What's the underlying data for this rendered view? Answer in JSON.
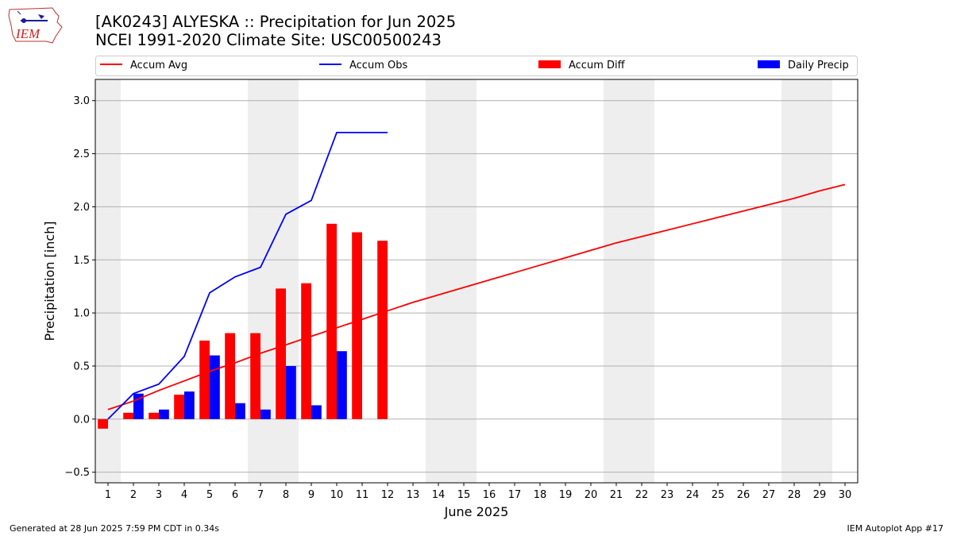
{
  "title_line1": "[AK0243] ALYESKA :: Precipitation for Jun 2025",
  "title_line2": "NCEI 1991-2020 Climate Site: USC00500243",
  "logo_text": "IEM",
  "footer_left": "Generated at 28 Jun 2025 7:59 PM CDT in 0.34s",
  "footer_right": "IEM Autoplot App #17",
  "colors": {
    "accum_avg": "#ff0000",
    "accum_obs": "#0000ff",
    "accum_diff": "#ff0000",
    "daily_precip": "#0000ff",
    "weekend_shade": "#eeeeee",
    "grid": "#b0b0b0"
  },
  "chart_data": {
    "type": "bar",
    "title": "[AK0243] ALYESKA :: Precipitation for Jun 2025",
    "subtitle": "NCEI 1991-2020 Climate Site: USC00500243",
    "xlabel": "June 2025",
    "ylabel": "Precipitation [inch]",
    "xlim": [
      0.5,
      30.5
    ],
    "ylim": [
      -0.6,
      3.2
    ],
    "yticks": [
      -0.5,
      0.0,
      0.5,
      1.0,
      1.5,
      2.0,
      2.5,
      3.0
    ],
    "ytick_labels": [
      "−0.5",
      "0.0",
      "0.5",
      "1.0",
      "1.5",
      "2.0",
      "2.5",
      "3.0"
    ],
    "x_categories": [
      1,
      2,
      3,
      4,
      5,
      6,
      7,
      8,
      9,
      10,
      11,
      12,
      13,
      14,
      15,
      16,
      17,
      18,
      19,
      20,
      21,
      22,
      23,
      24,
      25,
      26,
      27,
      28,
      29,
      30
    ],
    "grid": "horizontal",
    "legend_placement": "top",
    "weekend_shading_days": [
      [
        1,
        1
      ],
      [
        7,
        8
      ],
      [
        14,
        15
      ],
      [
        21,
        22
      ],
      [
        28,
        29
      ]
    ],
    "series": [
      {
        "name": "Accum Avg",
        "kind": "line",
        "x": [
          1,
          2,
          3,
          4,
          5,
          6,
          7,
          8,
          9,
          10,
          11,
          12,
          13,
          14,
          15,
          16,
          17,
          18,
          19,
          20,
          21,
          22,
          23,
          24,
          25,
          26,
          27,
          28,
          29,
          30
        ],
        "values": [
          0.09,
          0.17,
          0.27,
          0.36,
          0.45,
          0.53,
          0.62,
          0.7,
          0.78,
          0.86,
          0.94,
          1.02,
          1.1,
          1.17,
          1.24,
          1.31,
          1.38,
          1.45,
          1.52,
          1.59,
          1.66,
          1.72,
          1.78,
          1.84,
          1.9,
          1.96,
          2.02,
          2.08,
          2.15,
          2.21
        ]
      },
      {
        "name": "Accum Obs",
        "kind": "line",
        "x": [
          1,
          2,
          3,
          4,
          5,
          6,
          7,
          8,
          9,
          10,
          11,
          12
        ],
        "values": [
          0.0,
          0.24,
          0.33,
          0.59,
          1.19,
          1.34,
          1.43,
          1.93,
          2.06,
          2.7,
          2.7,
          2.7
        ]
      },
      {
        "name": "Accum Diff",
        "kind": "bar",
        "x": [
          1,
          2,
          3,
          4,
          5,
          6,
          7,
          8,
          9,
          10,
          11,
          12
        ],
        "values": [
          -0.09,
          0.06,
          0.06,
          0.23,
          0.74,
          0.81,
          0.81,
          1.23,
          1.28,
          1.84,
          1.76,
          1.68
        ]
      },
      {
        "name": "Daily Precip",
        "kind": "bar",
        "x": [
          1,
          2,
          3,
          4,
          5,
          6,
          7,
          8,
          9,
          10,
          11,
          12
        ],
        "values": [
          0.0,
          0.24,
          0.09,
          0.26,
          0.6,
          0.15,
          0.09,
          0.5,
          0.13,
          0.64,
          0.0,
          0.0
        ]
      }
    ]
  }
}
